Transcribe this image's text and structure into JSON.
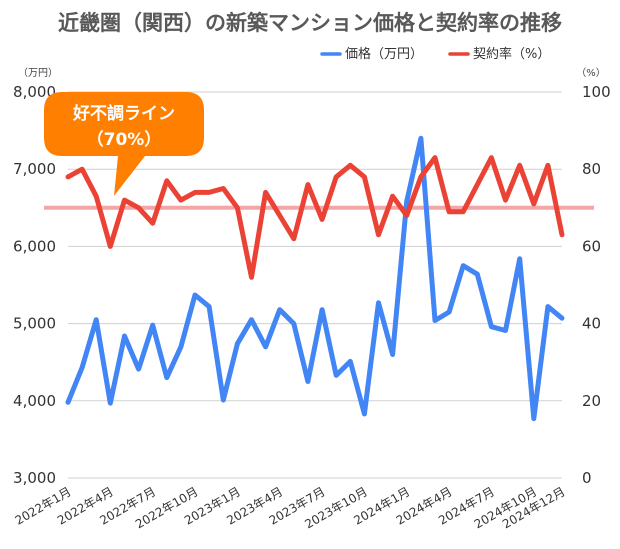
{
  "chart_data": {
    "type": "line",
    "title": "近畿圏（関西）の新築マンション価格と契約率の推移",
    "y_left": {
      "unit": "（万円）",
      "ylim": [
        3000,
        8000
      ],
      "ticks": [
        "3,000",
        "4,000",
        "5,000",
        "6,000",
        "7,000",
        "8,000"
      ]
    },
    "y_right": {
      "unit": "（%）",
      "ylim": [
        0,
        100
      ],
      "ticks": [
        "0",
        "20",
        "40",
        "60",
        "80",
        "100"
      ]
    },
    "x_tick_labels": [
      "2022年1月",
      "2022年4月",
      "2022年7月",
      "2022年10月",
      "2023年1月",
      "2023年4月",
      "2023年7月",
      "2023年10月",
      "2024年1月",
      "2024年4月",
      "2024年7月",
      "2024年10月",
      "2024年12月"
    ],
    "x": [
      "2022-01",
      "2022-02",
      "2022-03",
      "2022-04",
      "2022-05",
      "2022-06",
      "2022-07",
      "2022-08",
      "2022-09",
      "2022-10",
      "2022-11",
      "2022-12",
      "2023-01",
      "2023-02",
      "2023-03",
      "2023-04",
      "2023-05",
      "2023-06",
      "2023-07",
      "2023-08",
      "2023-09",
      "2023-10",
      "2023-11",
      "2023-12",
      "2024-01",
      "2024-02",
      "2024-03",
      "2024-04",
      "2024-05",
      "2024-06",
      "2024-07",
      "2024-08",
      "2024-09",
      "2024-10",
      "2024-11",
      "2024-12"
    ],
    "legend_position": "top-right",
    "series": [
      {
        "name": "価格（万円）",
        "axis": "left",
        "color": "#4285f4",
        "values": [
          3980,
          4430,
          5050,
          3970,
          4840,
          4410,
          4980,
          4300,
          4700,
          5370,
          5220,
          4010,
          4740,
          5050,
          4700,
          5180,
          5000,
          4250,
          5180,
          4330,
          4510,
          3830,
          5270,
          4600,
          6580,
          7400,
          5040,
          5150,
          5750,
          5640,
          4960,
          4910,
          5840,
          3770,
          5220,
          5070
        ]
      },
      {
        "name": "契約率（%）",
        "axis": "right",
        "color": "#ea4335",
        "values": [
          78,
          80,
          73,
          60,
          72,
          70,
          66,
          77,
          72,
          74,
          74,
          75,
          70,
          52,
          74,
          68,
          62,
          76,
          67,
          78,
          81,
          78,
          63,
          73,
          68,
          78,
          83,
          69,
          69,
          76,
          83,
          72,
          81,
          71,
          81,
          63
        ]
      }
    ],
    "reference_line": {
      "axis": "right",
      "value": 70,
      "color": "#f4a6a6"
    },
    "callout": {
      "line1": "好不調ライン",
      "line2": "（70%）",
      "color": "#ff7f00"
    }
  }
}
